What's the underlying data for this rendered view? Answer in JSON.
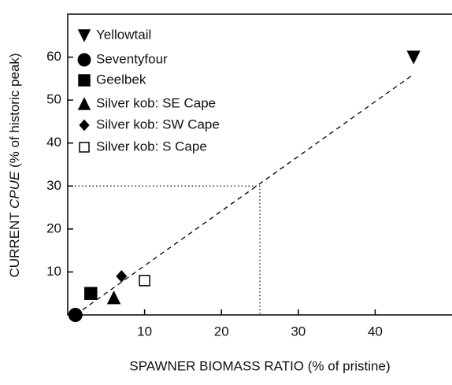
{
  "chart_data": {
    "type": "scatter",
    "x_label": "SPAWNER BIOMASS RATIO (% of pristine)",
    "y_label": [
      "CURRENT ",
      "CPUE",
      " (% of historic peak)"
    ],
    "xlim": [
      0,
      50
    ],
    "ylim": [
      0,
      70
    ],
    "xticks": [
      10,
      20,
      30,
      40
    ],
    "yticks": [
      10,
      20,
      30,
      40,
      50,
      60
    ],
    "color": "#000000",
    "series": [
      {
        "name": "Yellowtail",
        "marker": "triangle-down",
        "x": [
          45
        ],
        "values": [
          60
        ]
      },
      {
        "name": "Seventyfour",
        "marker": "circle",
        "x": [
          1
        ],
        "values": [
          0
        ]
      },
      {
        "name": "Geelbek",
        "marker": "square",
        "x": [
          3
        ],
        "values": [
          5
        ]
      },
      {
        "name": "Silver kob: SE Cape",
        "marker": "triangle-up",
        "x": [
          6
        ],
        "values": [
          4
        ]
      },
      {
        "name": "Silver kob: SW Cape",
        "marker": "diamond",
        "x": [
          7
        ],
        "values": [
          9
        ]
      },
      {
        "name": "Silver kob: S Cape",
        "marker": "open-square",
        "x": [
          10
        ],
        "values": [
          8
        ]
      }
    ],
    "fit_line": {
      "x": [
        1,
        45
      ],
      "values": [
        0,
        56
      ]
    },
    "reference": {
      "x": 25,
      "values": 30
    }
  }
}
